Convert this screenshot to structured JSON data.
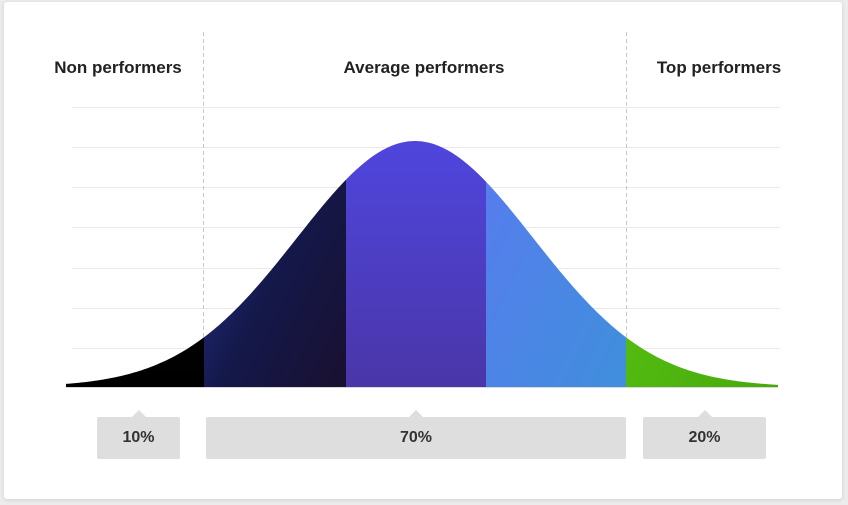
{
  "chart_data": {
    "type": "area",
    "distribution": "normal",
    "categories": [
      "Non performers",
      "Average performers",
      "Top performers"
    ],
    "values": [
      10,
      70,
      20
    ],
    "value_labels": [
      "10%",
      "70%",
      "20%"
    ],
    "grid": true,
    "colors": {
      "non_performers": "#000000",
      "average_dark": "#1a1f5e",
      "average_mid": "#4b3fc4",
      "average_light": "#4a7de8",
      "top_performers": "#55bb11"
    }
  }
}
